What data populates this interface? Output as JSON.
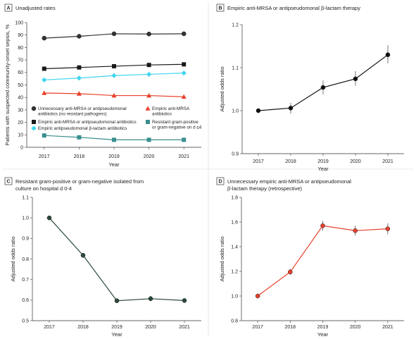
{
  "chart_data": [
    {
      "panel": "A",
      "type": "line",
      "title": "Unadjusted rates",
      "xlabel": "Year",
      "ylabel": "Patients with suspected community-onset sepsis, %",
      "x": [
        "2017",
        "2018",
        "2019",
        "2020",
        "2021"
      ],
      "ylim": [
        0,
        100
      ],
      "yticks": [
        "0",
        "10",
        "20",
        "30",
        "40",
        "50",
        "60",
        "70",
        "80",
        "90",
        "100"
      ],
      "grid": false,
      "legend_position": "middle",
      "series": [
        {
          "name": "Unnecessary anti-MRSA or antipseudomonal antibiotics (no resistant pathogens)",
          "legend_lines": [
            "Unnecessary anti-MRSA or antipseudomonal",
            "antibiotics (no resistant pathogens)"
          ],
          "values": [
            87.5,
            89,
            91,
            90.8,
            91
          ],
          "color": "#333333",
          "marker": "circle"
        },
        {
          "name": "Empiric anti-MRSA or antipseudomonal antibiotics",
          "legend_lines": [
            "Empiric anti-MRSA or antipseudomonal antibiotics"
          ],
          "values": [
            63,
            64,
            65,
            66,
            66.5
          ],
          "color": "#1a1a1a",
          "marker": "square"
        },
        {
          "name": "Empiric antipseudomonal β-lactam antibiotics",
          "legend_lines": [
            "Empiric antipseudomonal β-lactam antibiotics"
          ],
          "values": [
            54,
            55.5,
            57.5,
            58.5,
            59.5
          ],
          "color": "#3fd6ee",
          "marker": "diamond"
        },
        {
          "name": "Empiric anti-MRSA antibiotics",
          "legend_lines": [
            "Empiric anti-MRSA",
            "antibiotics"
          ],
          "values": [
            43.5,
            43,
            41.5,
            41.5,
            40.5
          ],
          "color": "#e8412c",
          "marker": "triangle"
        },
        {
          "name": "Resistant gram-positive or gram-negative on d ≤4",
          "legend_lines": [
            "Resistant gram-positive",
            "or gram-negative on d ≤4"
          ],
          "values": [
            9.5,
            8,
            6,
            6,
            6
          ],
          "color": "#3a8f8f",
          "marker": "square"
        }
      ]
    },
    {
      "panel": "B",
      "type": "line",
      "title": "Empiric anti-MRSA or antipseudomonal β-lactam therapy",
      "xlabel": "Year",
      "ylabel": "Adjusted odds ratio",
      "x": [
        "2017",
        "2018",
        "2019",
        "2020",
        "2021"
      ],
      "ylim": [
        0.9,
        1.2
      ],
      "yticks": [
        "0.9",
        "1.0",
        "1.1",
        "1.2"
      ],
      "grid": false,
      "series": [
        {
          "name": "",
          "values": [
            1.0,
            1.006,
            1.054,
            1.074,
            1.13
          ],
          "ci_low": [
            1.0,
            0.993,
            1.038,
            1.058,
            1.11
          ],
          "ci_high": [
            1.0,
            1.018,
            1.07,
            1.092,
            1.152
          ],
          "color": "#111111",
          "marker": "circle"
        }
      ]
    },
    {
      "panel": "C",
      "type": "line",
      "title": "Resistant gram-positive or gram-negative isolated from culture on hospital d 0-4",
      "title_lines": [
        "Resistant gram-positive or gram-negative isolated from",
        "culture on hospital d 0-4"
      ],
      "xlabel": "Year",
      "ylabel": "Adjusted odds ratio",
      "x": [
        "2017",
        "2018",
        "2019",
        "2020",
        "2021"
      ],
      "ylim": [
        0.5,
        1.1
      ],
      "yticks": [
        "0.5",
        "0.6",
        "0.7",
        "0.8",
        "0.9",
        "1.0",
        "1.1"
      ],
      "grid": false,
      "series": [
        {
          "name": "",
          "values": [
            1.0,
            0.818,
            0.597,
            0.607,
            0.598
          ],
          "ci_low": [
            1.0,
            0.806,
            0.588,
            0.595,
            0.588
          ],
          "ci_high": [
            1.0,
            0.83,
            0.606,
            0.62,
            0.608
          ],
          "color": "#2b4a3a",
          "marker": "circle"
        }
      ]
    },
    {
      "panel": "D",
      "type": "line",
      "title": "Unnecessary empiric anti-MRSA or antipseudomonal β-lactam therapy (retrospective)",
      "title_lines": [
        "Unnecessary empiric anti-MRSA or antipseudomonal",
        "β-lactam therapy (retrospective)"
      ],
      "xlabel": "Year",
      "ylabel": "Adjusted odds ratio",
      "x": [
        "2017",
        "2018",
        "2019",
        "2020",
        "2021"
      ],
      "ylim": [
        0.8,
        1.8
      ],
      "yticks": [
        "0.8",
        "1.0",
        "1.2",
        "1.4",
        "1.6",
        "1.8"
      ],
      "grid": false,
      "series": [
        {
          "name": "",
          "values": [
            1.0,
            1.195,
            1.57,
            1.53,
            1.545
          ],
          "ci_low": [
            1.0,
            1.17,
            1.53,
            1.49,
            1.5
          ],
          "ci_high": [
            1.0,
            1.22,
            1.61,
            1.57,
            1.59
          ],
          "color": "#e8412c",
          "marker": "circle"
        }
      ]
    }
  ]
}
